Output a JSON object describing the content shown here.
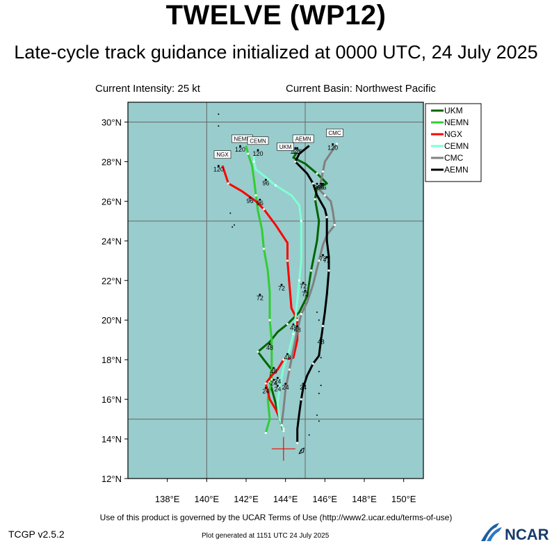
{
  "title": "TWELVE (WP12)",
  "subtitle": "Late-cycle track guidance initialized at 0000 UTC, 24 July 2025",
  "current_intensity": "Current Intensity: 25 kt",
  "current_basin": "Current Basin: Northwest Pacific",
  "terms_text": "Use of this product is governed by the UCAR Terms of Use (http://www2.ucar.edu/terms-of-use)",
  "version_text": "TCGP v2.5.2",
  "generated_text": "Plot generated at 1151 UTC   24 July 2025",
  "logo_text": "NCAR",
  "colors": {
    "ocean": "#99cccc",
    "UKM": "#006400",
    "NEMN": "#32cd32",
    "NGX": "#ff0000",
    "CEMN": "#7fffd4",
    "CMC": "#808080",
    "AEMN": "#000000",
    "storm_marker": "#ff0000"
  },
  "chart_data": {
    "type": "line",
    "xlim": [
      136,
      151
    ],
    "ylim": [
      12,
      31
    ],
    "x_ticks": [
      138,
      140,
      142,
      144,
      146,
      148,
      150
    ],
    "x_tick_labels": [
      "138°E",
      "140°E",
      "142°E",
      "144°E",
      "146°E",
      "148°E",
      "150°E"
    ],
    "y_ticks": [
      12,
      14,
      16,
      18,
      20,
      22,
      24,
      26,
      28,
      30
    ],
    "y_tick_labels": [
      "12°N",
      "14°N",
      "16°N",
      "18°N",
      "20°N",
      "22°N",
      "24°N",
      "26°N",
      "28°N",
      "30°N"
    ],
    "grid_lines": {
      "lon": [
        140,
        145
      ],
      "lat": [
        15,
        25,
        30
      ]
    },
    "legend_position": "top-right",
    "current_position": {
      "lon": 143.9,
      "lat": 13.5
    },
    "series": [
      {
        "name": "UKM",
        "points": [
          [
            143.9,
            14.4
          ],
          [
            143.7,
            15.0
          ],
          [
            143.5,
            15.8
          ],
          [
            143.2,
            16.9
          ],
          [
            143.3,
            17.5
          ],
          [
            142.9,
            18.0
          ],
          [
            142.6,
            18.4
          ],
          [
            143.2,
            18.9
          ],
          [
            143.6,
            19.4
          ],
          [
            144.1,
            19.8
          ],
          [
            144.7,
            20.4
          ],
          [
            145.1,
            21.2
          ],
          [
            145.3,
            22.5
          ],
          [
            145.6,
            24.0
          ],
          [
            145.7,
            25.0
          ],
          [
            145.5,
            26.1
          ],
          [
            145.6,
            26.7
          ],
          [
            146.1,
            26.9
          ],
          [
            145.6,
            27.4
          ],
          [
            145.0,
            27.9
          ],
          [
            144.4,
            28.2
          ],
          [
            144.6,
            28.5
          ]
        ],
        "time_labels": [
          {
            "t": "24",
            "lon": 143.4,
            "lat": 16.7
          },
          {
            "t": "48",
            "lon": 143.2,
            "lat": 18.5
          },
          {
            "t": "72",
            "lon": 145.0,
            "lat": 21.2
          },
          {
            "t": "96",
            "lon": 145.9,
            "lat": 26.6
          },
          {
            "t": "120",
            "lon": 144.5,
            "lat": 28.4
          }
        ]
      },
      {
        "name": "NEMN",
        "points": [
          [
            143.0,
            14.3
          ],
          [
            143.2,
            15.0
          ],
          [
            143.1,
            16.0
          ],
          [
            143.3,
            17.0
          ],
          [
            143.3,
            18.0
          ],
          [
            143.3,
            19.0
          ],
          [
            143.2,
            20.0
          ],
          [
            143.2,
            21.4
          ],
          [
            143.1,
            22.5
          ],
          [
            142.9,
            23.6
          ],
          [
            142.8,
            24.6
          ],
          [
            142.6,
            25.5
          ],
          [
            142.5,
            26.3
          ],
          [
            142.4,
            27.1
          ],
          [
            142.3,
            27.8
          ],
          [
            142.1,
            28.4
          ],
          [
            142.0,
            28.8
          ]
        ],
        "time_labels": [
          {
            "t": "24",
            "lon": 143.0,
            "lat": 16.3
          },
          {
            "t": "48",
            "lon": 143.4,
            "lat": 17.3
          },
          {
            "t": "72",
            "lon": 142.7,
            "lat": 21.0
          },
          {
            "t": "96",
            "lon": 142.2,
            "lat": 25.9
          },
          {
            "t": "120",
            "lon": 141.7,
            "lat": 28.5
          }
        ]
      },
      {
        "name": "NGX",
        "points": [
          [
            143.8,
            14.8
          ],
          [
            143.5,
            15.5
          ],
          [
            143.2,
            16.0
          ],
          [
            143.0,
            16.8
          ],
          [
            143.3,
            17.2
          ],
          [
            143.6,
            17.5
          ],
          [
            143.9,
            18.0
          ],
          [
            144.4,
            18.1
          ],
          [
            144.6,
            19.0
          ],
          [
            144.6,
            20.0
          ],
          [
            144.3,
            20.6
          ],
          [
            144.2,
            21.8
          ],
          [
            144.1,
            23.0
          ],
          [
            144.1,
            23.9
          ],
          [
            143.5,
            24.8
          ],
          [
            142.9,
            25.6
          ],
          [
            142.5,
            26.0
          ],
          [
            141.8,
            26.5
          ],
          [
            141.1,
            26.9
          ],
          [
            140.8,
            27.8
          ]
        ],
        "time_labels": [
          {
            "t": "24",
            "lon": 143.6,
            "lat": 16.8
          },
          {
            "t": "48",
            "lon": 144.1,
            "lat": 18.0
          },
          {
            "t": "72",
            "lon": 143.8,
            "lat": 21.5
          },
          {
            "t": "96",
            "lon": 142.7,
            "lat": 25.8
          },
          {
            "t": "120",
            "lon": 140.6,
            "lat": 27.5
          }
        ]
      },
      {
        "name": "CEMN",
        "points": [
          [
            143.9,
            14.5
          ],
          [
            143.7,
            15.0
          ],
          [
            143.6,
            15.8
          ],
          [
            143.7,
            16.6
          ],
          [
            143.9,
            17.6
          ],
          [
            144.2,
            18.5
          ],
          [
            144.4,
            19.3
          ],
          [
            144.5,
            20.0
          ],
          [
            144.6,
            21.0
          ],
          [
            144.7,
            22.0
          ],
          [
            144.8,
            23.0
          ],
          [
            144.8,
            24.0
          ],
          [
            144.8,
            25.0
          ],
          [
            144.7,
            25.8
          ],
          [
            144.3,
            26.3
          ],
          [
            143.5,
            26.8
          ],
          [
            142.9,
            27.3
          ],
          [
            142.5,
            27.6
          ],
          [
            142.4,
            28.0
          ],
          [
            142.4,
            28.3
          ]
        ],
        "time_labels": [
          {
            "t": "24",
            "lon": 143.6,
            "lat": 16.4
          },
          {
            "t": "48",
            "lon": 144.4,
            "lat": 19.5
          },
          {
            "t": "72",
            "lon": 144.9,
            "lat": 21.6
          },
          {
            "t": "96",
            "lon": 143.0,
            "lat": 26.8
          },
          {
            "t": "120",
            "lon": 142.6,
            "lat": 28.3
          }
        ]
      },
      {
        "name": "CMC",
        "points": [
          [
            143.8,
            14.7
          ],
          [
            143.9,
            15.5
          ],
          [
            144.0,
            16.5
          ],
          [
            144.2,
            17.5
          ],
          [
            144.4,
            18.5
          ],
          [
            144.6,
            19.5
          ],
          [
            144.8,
            20.3
          ],
          [
            145.1,
            20.9
          ],
          [
            145.4,
            21.8
          ],
          [
            145.7,
            23.0
          ],
          [
            145.9,
            23.8
          ],
          [
            146.1,
            24.3
          ],
          [
            146.5,
            24.8
          ],
          [
            146.4,
            25.5
          ],
          [
            146.3,
            26.0
          ],
          [
            146.0,
            26.3
          ],
          [
            145.7,
            26.6
          ],
          [
            145.8,
            27.0
          ],
          [
            145.9,
            27.5
          ],
          [
            146.0,
            28.0
          ],
          [
            146.4,
            28.6
          ],
          [
            146.6,
            28.9
          ]
        ],
        "time_labels": [
          {
            "t": "24",
            "lon": 144.0,
            "lat": 16.5
          },
          {
            "t": "48",
            "lon": 144.6,
            "lat": 19.4
          },
          {
            "t": "72",
            "lon": 145.9,
            "lat": 23.0
          },
          {
            "t": "96",
            "lon": 145.8,
            "lat": 26.6
          },
          {
            "t": "120",
            "lon": 146.4,
            "lat": 28.6
          }
        ]
      },
      {
        "name": "AEMN",
        "points": [
          [
            144.6,
            13.8
          ],
          [
            144.6,
            14.5
          ],
          [
            144.7,
            15.3
          ],
          [
            144.8,
            16.0
          ],
          [
            144.9,
            16.6
          ],
          [
            145.1,
            17.2
          ],
          [
            145.4,
            17.8
          ],
          [
            145.7,
            18.2
          ],
          [
            145.8,
            19.0
          ],
          [
            145.9,
            19.7
          ],
          [
            146.0,
            20.4
          ],
          [
            146.1,
            21.3
          ],
          [
            146.2,
            22.5
          ],
          [
            146.2,
            23.2
          ],
          [
            146.1,
            24.0
          ],
          [
            146.1,
            25.2
          ],
          [
            146.0,
            25.6
          ],
          [
            145.6,
            26.3
          ],
          [
            145.4,
            26.9
          ],
          [
            145.1,
            27.4
          ],
          [
            144.7,
            27.8
          ],
          [
            144.5,
            28.0
          ],
          [
            144.7,
            28.4
          ],
          [
            145.2,
            28.8
          ]
        ],
        "time_labels": [
          {
            "t": "24",
            "lon": 144.9,
            "lat": 16.5
          },
          {
            "t": "48",
            "lon": 145.8,
            "lat": 18.8
          },
          {
            "t": "72",
            "lon": 146.1,
            "lat": 22.9
          },
          {
            "t": "96",
            "lon": 145.6,
            "lat": 26.6
          },
          {
            "t": "120",
            "lon": 144.6,
            "lat": 28.4
          }
        ]
      }
    ],
    "end_tags": [
      {
        "text": "NEMN",
        "lon": 141.8,
        "lat": 29.0
      },
      {
        "text": "CEMN",
        "lon": 142.6,
        "lat": 28.9
      },
      {
        "text": "AEMN",
        "lon": 144.9,
        "lat": 29.0
      },
      {
        "text": "UKM",
        "lon": 144.0,
        "lat": 28.6
      },
      {
        "text": "CMC",
        "lon": 146.5,
        "lat": 29.3
      },
      {
        "text": "NGX",
        "lon": 140.8,
        "lat": 28.2
      }
    ],
    "islands": [
      {
        "lon": 140.6,
        "lat": 30.4
      },
      {
        "lon": 140.6,
        "lat": 29.8
      },
      {
        "lon": 141.2,
        "lat": 25.4
      },
      {
        "lon": 141.4,
        "lat": 24.8
      },
      {
        "lon": 141.3,
        "lat": 24.7
      },
      {
        "lon": 145.6,
        "lat": 20.4
      },
      {
        "lon": 145.7,
        "lat": 20.0
      },
      {
        "lon": 145.8,
        "lat": 18.8
      },
      {
        "lon": 145.8,
        "lat": 18.1
      },
      {
        "lon": 145.7,
        "lat": 17.4
      },
      {
        "lon": 145.8,
        "lat": 16.7
      },
      {
        "lon": 145.7,
        "lat": 16.3
      },
      {
        "lon": 145.6,
        "lat": 15.2
      },
      {
        "lon": 145.7,
        "lat": 14.9
      },
      {
        "lon": 145.2,
        "lat": 14.2
      },
      {
        "lon": 144.8,
        "lat": 13.4
      }
    ]
  }
}
